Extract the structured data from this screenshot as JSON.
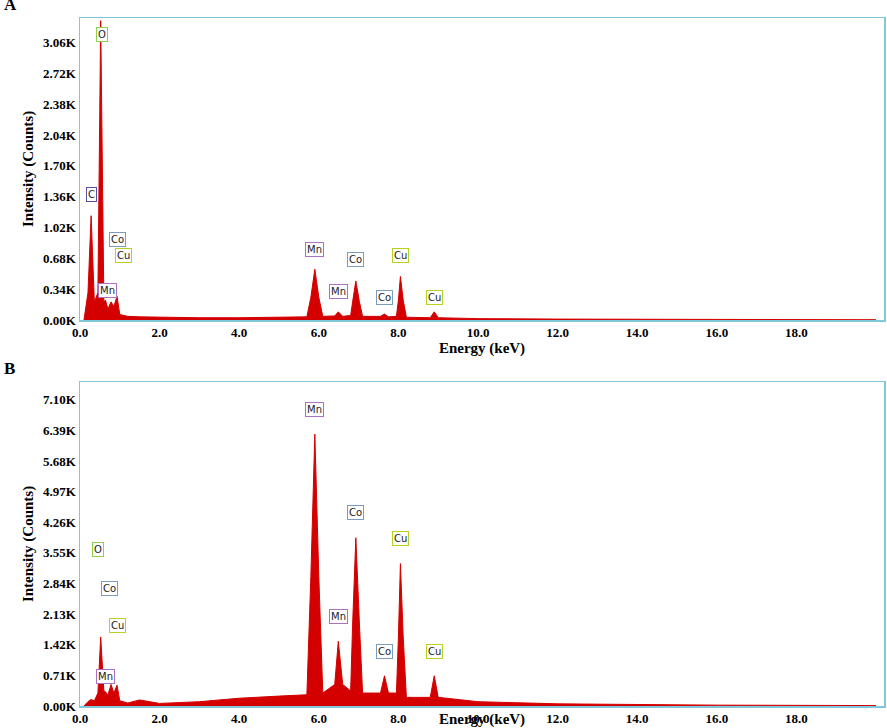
{
  "chart_data": [
    {
      "type": "area",
      "title": "A",
      "x_label": "Energy (keV)",
      "y_label": "Intensity (Counts)",
      "color": "#d40000",
      "x": [
        0.1,
        0.2,
        0.28,
        0.36,
        0.45,
        0.52,
        0.6,
        0.64,
        0.7,
        0.78,
        0.85,
        0.93,
        1.0,
        1.2,
        1.5,
        2.0,
        3.0,
        4.0,
        5.0,
        5.7,
        5.8,
        5.9,
        6.0,
        6.1,
        6.4,
        6.49,
        6.6,
        6.8,
        6.85,
        6.93,
        7.02,
        7.1,
        7.55,
        7.65,
        7.75,
        7.95,
        8.0,
        8.05,
        8.12,
        8.2,
        8.8,
        8.9,
        9.0,
        10.0,
        12.0,
        14.0,
        16.0,
        18.0,
        20.0
      ],
      "values": [
        0,
        300,
        1150,
        200,
        300,
        3300,
        200,
        220,
        120,
        200,
        150,
        260,
        60,
        40,
        35,
        30,
        25,
        25,
        30,
        35,
        250,
        560,
        250,
        40,
        45,
        90,
        40,
        50,
        200,
        430,
        200,
        40,
        40,
        65,
        35,
        40,
        220,
        480,
        220,
        30,
        25,
        90,
        25,
        15,
        10,
        8,
        5,
        5,
        3
      ],
      "xlim": [
        0,
        20.2
      ],
      "ylim": [
        0,
        3330
      ],
      "xticks": [
        {
          "value": 0,
          "label": "0.0"
        },
        {
          "value": 2,
          "label": "2.0"
        },
        {
          "value": 4,
          "label": "4.0"
        },
        {
          "value": 6,
          "label": "6.0"
        },
        {
          "value": 8,
          "label": "8.0"
        },
        {
          "value": 10,
          "label": "10.0"
        },
        {
          "value": 12,
          "label": "12.0"
        },
        {
          "value": 14,
          "label": "14.0"
        },
        {
          "value": 16,
          "label": "16.0"
        },
        {
          "value": 18,
          "label": "18.0"
        }
      ],
      "yticks": [
        {
          "value": 0,
          "label": "0.00K"
        },
        {
          "value": 340,
          "label": "0.34K"
        },
        {
          "value": 680,
          "label": "0.68K"
        },
        {
          "value": 1020,
          "label": "1.02K"
        },
        {
          "value": 1360,
          "label": "1.36K"
        },
        {
          "value": 1700,
          "label": "1.70K"
        },
        {
          "value": 2040,
          "label": "2.04K"
        },
        {
          "value": 2380,
          "label": "2.38K"
        },
        {
          "value": 2720,
          "label": "2.72K"
        },
        {
          "value": 3060,
          "label": "3.06K"
        }
      ],
      "grid": false,
      "annotations": [
        {
          "text": "O",
          "x": 0.55,
          "y": 3060,
          "color": "#8fcf4f"
        },
        {
          "text": "C",
          "x": 0.3,
          "y": 1300,
          "color": "#5a4fa0"
        },
        {
          "text": "Co",
          "x": 0.95,
          "y": 800,
          "color": "#7a9cc0"
        },
        {
          "text": "Cu",
          "x": 1.1,
          "y": 630,
          "color": "#b8d020"
        },
        {
          "text": "Mn",
          "x": 0.7,
          "y": 240,
          "color": "#b070c0"
        },
        {
          "text": "Mn",
          "x": 5.9,
          "y": 700,
          "color": "#b070c0"
        },
        {
          "text": "Mn",
          "x": 6.5,
          "y": 230,
          "color": "#b070c0"
        },
        {
          "text": "Co",
          "x": 6.93,
          "y": 580,
          "color": "#7a9cc0"
        },
        {
          "text": "Co",
          "x": 7.65,
          "y": 160,
          "color": "#7a9cc0"
        },
        {
          "text": "Cu",
          "x": 8.05,
          "y": 630,
          "color": "#b8d020"
        },
        {
          "text": "Cu",
          "x": 8.9,
          "y": 170,
          "color": "#b8d020"
        }
      ]
    },
    {
      "type": "area",
      "title": "B",
      "x_label": "Energy (keV)",
      "y_label": "Intensity (Counts)",
      "color": "#d40000",
      "x": [
        0.1,
        0.2,
        0.28,
        0.36,
        0.45,
        0.52,
        0.6,
        0.64,
        0.7,
        0.78,
        0.85,
        0.93,
        1.0,
        1.2,
        1.5,
        2.0,
        3.0,
        4.0,
        5.0,
        5.7,
        5.8,
        5.9,
        6.0,
        6.1,
        6.4,
        6.49,
        6.6,
        6.8,
        6.85,
        6.93,
        7.02,
        7.1,
        7.55,
        7.65,
        7.75,
        7.95,
        8.0,
        8.05,
        8.12,
        8.2,
        8.8,
        8.9,
        9.0,
        10.0,
        12.0,
        14.0,
        16.0,
        18.0,
        20.0
      ],
      "values": [
        0,
        100,
        150,
        120,
        300,
        1600,
        350,
        330,
        250,
        500,
        300,
        480,
        120,
        70,
        140,
        60,
        100,
        180,
        230,
        260,
        3000,
        6300,
        3000,
        300,
        500,
        1500,
        500,
        350,
        1900,
        3900,
        1900,
        300,
        300,
        700,
        300,
        300,
        1600,
        3300,
        1600,
        200,
        200,
        700,
        200,
        100,
        50,
        30,
        20,
        15,
        10
      ],
      "xlim": [
        0,
        20.2
      ],
      "ylim": [
        0,
        7510
      ],
      "xticks": [
        {
          "value": 0,
          "label": "0.0"
        },
        {
          "value": 2,
          "label": "2.0"
        },
        {
          "value": 4,
          "label": "4.0"
        },
        {
          "value": 6,
          "label": "6.0"
        },
        {
          "value": 8,
          "label": "8.0"
        },
        {
          "value": 10,
          "label": "10.0"
        },
        {
          "value": 12,
          "label": "12.0"
        },
        {
          "value": 14,
          "label": "14.0"
        },
        {
          "value": 16,
          "label": "16.0"
        },
        {
          "value": 18,
          "label": "18.0"
        }
      ],
      "yticks": [
        {
          "value": 0,
          "label": "0.00K"
        },
        {
          "value": 710,
          "label": "0.71K"
        },
        {
          "value": 1420,
          "label": "1.42K"
        },
        {
          "value": 2130,
          "label": "2.13K"
        },
        {
          "value": 2840,
          "label": "2.84K"
        },
        {
          "value": 3550,
          "label": "3.55K"
        },
        {
          "value": 4260,
          "label": "4.26K"
        },
        {
          "value": 4970,
          "label": "4.97K"
        },
        {
          "value": 5680,
          "label": "5.68K"
        },
        {
          "value": 6390,
          "label": "6.39K"
        },
        {
          "value": 7100,
          "label": "7.10K"
        }
      ],
      "grid": false,
      "annotations": [
        {
          "text": "O",
          "x": 0.45,
          "y": 3450,
          "color": "#8fcf4f"
        },
        {
          "text": "Co",
          "x": 0.75,
          "y": 2550,
          "color": "#7a9cc0"
        },
        {
          "text": "Cu",
          "x": 0.95,
          "y": 1700,
          "color": "#b8d020"
        },
        {
          "text": "Mn",
          "x": 0.65,
          "y": 520,
          "color": "#b070c0"
        },
        {
          "text": "Mn",
          "x": 5.9,
          "y": 6700,
          "color": "#b070c0"
        },
        {
          "text": "Mn",
          "x": 6.5,
          "y": 1900,
          "color": "#b070c0"
        },
        {
          "text": "Co",
          "x": 6.93,
          "y": 4300,
          "color": "#7a9cc0"
        },
        {
          "text": "Co",
          "x": 7.65,
          "y": 1100,
          "color": "#7a9cc0"
        },
        {
          "text": "Cu",
          "x": 8.05,
          "y": 3700,
          "color": "#b8d020"
        },
        {
          "text": "Cu",
          "x": 8.9,
          "y": 1100,
          "color": "#b8d020"
        }
      ]
    }
  ]
}
